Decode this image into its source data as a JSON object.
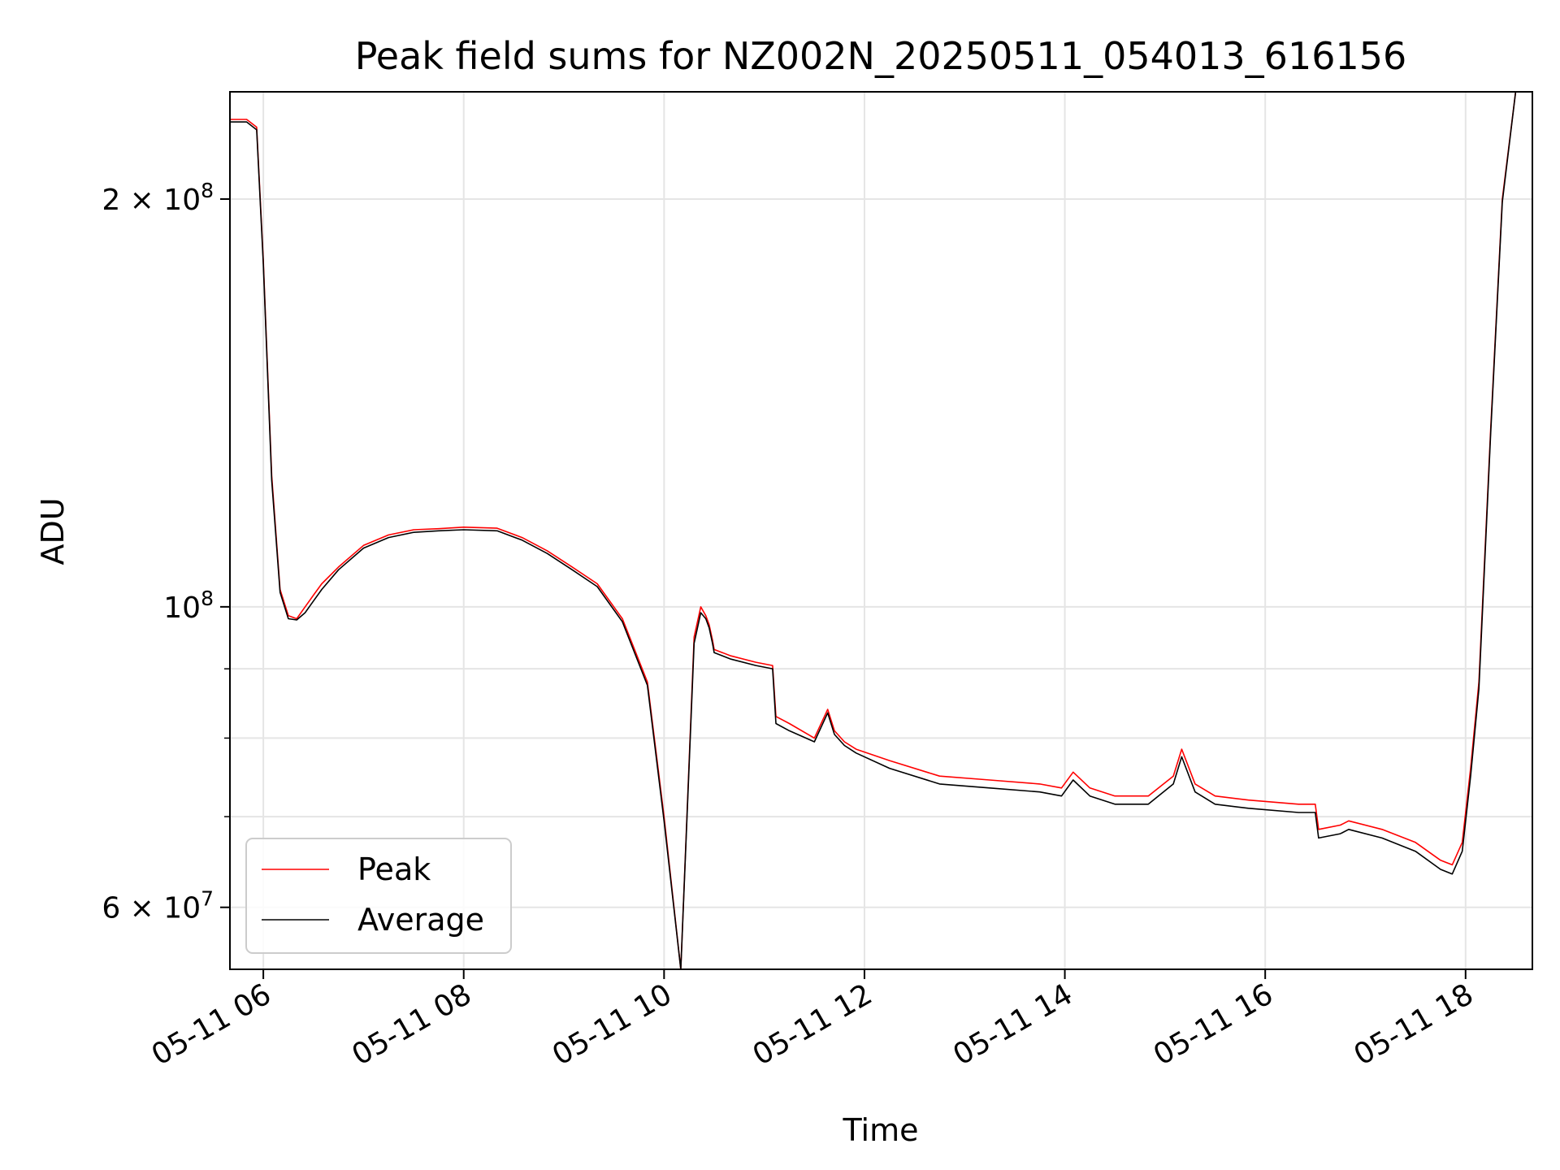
{
  "chart_data": {
    "type": "line",
    "title": "Peak field sums for NZ002N_20250511_054013_616156",
    "xlabel": "Time",
    "ylabel": "ADU",
    "y_scale": "log",
    "ylim": [
      54000000,
      240000000
    ],
    "xlim": [
      "2025-05-11T05:40:00",
      "2025-05-11T18:40:00"
    ],
    "grid": true,
    "legend_position": "lower-left",
    "x_ticks": [
      {
        "t": "2025-05-11T06:00",
        "label": "05-11 06"
      },
      {
        "t": "2025-05-11T08:00",
        "label": "05-11 08"
      },
      {
        "t": "2025-05-11T10:00",
        "label": "05-11 10"
      },
      {
        "t": "2025-05-11T12:00",
        "label": "05-11 12"
      },
      {
        "t": "2025-05-11T14:00",
        "label": "05-11 14"
      },
      {
        "t": "2025-05-11T16:00",
        "label": "05-11 16"
      },
      {
        "t": "2025-05-11T18:00",
        "label": "05-11 18"
      }
    ],
    "y_ticks_major": [
      {
        "value": 60000000,
        "mantissa": "6",
        "exponent": "7"
      },
      {
        "value": 100000000,
        "mantissa": "",
        "exponent": "8"
      },
      {
        "value": 200000000,
        "mantissa": "2",
        "exponent": "8"
      }
    ],
    "y_ticks_minor": [
      70000000,
      80000000,
      90000000
    ],
    "times_symbol": "×",
    "tick_base": "10",
    "series": [
      {
        "name": "Peak",
        "color": "#ff0000",
        "x": [
          "2025-05-11T05:40",
          "2025-05-11T05:50",
          "2025-05-11T05:56",
          "2025-05-11T06:00",
          "2025-05-11T06:05",
          "2025-05-11T06:10",
          "2025-05-11T06:15",
          "2025-05-11T06:20",
          "2025-05-11T06:25",
          "2025-05-11T06:30",
          "2025-05-11T06:35",
          "2025-05-11T06:45",
          "2025-05-11T07:00",
          "2025-05-11T07:15",
          "2025-05-11T07:30",
          "2025-05-11T07:45",
          "2025-05-11T08:00",
          "2025-05-11T08:20",
          "2025-05-11T08:35",
          "2025-05-11T08:50",
          "2025-05-11T09:05",
          "2025-05-11T09:20",
          "2025-05-11T09:35",
          "2025-05-11T09:50",
          "2025-05-11T10:00",
          "2025-05-11T10:10",
          "2025-05-11T10:18",
          "2025-05-11T10:22",
          "2025-05-11T10:25",
          "2025-05-11T10:27",
          "2025-05-11T10:29",
          "2025-05-11T10:30",
          "2025-05-11T10:40",
          "2025-05-11T10:55",
          "2025-05-11T11:05",
          "2025-05-11T11:07",
          "2025-05-11T11:15",
          "2025-05-11T11:30",
          "2025-05-11T11:38",
          "2025-05-11T11:42",
          "2025-05-11T11:48",
          "2025-05-11T11:55",
          "2025-05-11T12:15",
          "2025-05-11T12:45",
          "2025-05-11T13:15",
          "2025-05-11T13:45",
          "2025-05-11T13:58",
          "2025-05-11T14:05",
          "2025-05-11T14:15",
          "2025-05-11T14:30",
          "2025-05-11T14:50",
          "2025-05-11T15:05",
          "2025-05-11T15:10",
          "2025-05-11T15:18",
          "2025-05-11T15:30",
          "2025-05-11T15:50",
          "2025-05-11T16:20",
          "2025-05-11T16:30",
          "2025-05-11T16:32",
          "2025-05-11T16:45",
          "2025-05-11T16:50",
          "2025-05-11T17:10",
          "2025-05-11T17:30",
          "2025-05-11T17:45",
          "2025-05-11T17:52",
          "2025-05-11T17:58",
          "2025-05-11T18:03",
          "2025-05-11T18:08",
          "2025-05-11T18:15",
          "2025-05-11T18:22",
          "2025-05-11T18:30",
          "2025-05-11T18:40"
        ],
        "values": [
          229000000,
          229000000,
          226000000,
          180000000,
          125000000,
          103000000,
          98500000,
          98000000,
          100000000,
          102000000,
          104000000,
          107000000,
          111000000,
          113000000,
          114000000,
          114200000,
          114500000,
          114300000,
          112500000,
          110000000,
          107000000,
          104000000,
          98000000,
          88000000,
          70000000,
          54000000,
          95000000,
          100000000,
          98500000,
          97000000,
          94500000,
          93000000,
          92000000,
          91000000,
          90500000,
          83000000,
          82000000,
          80000000,
          84000000,
          81000000,
          79500000,
          78500000,
          77000000,
          75000000,
          74500000,
          74000000,
          73500000,
          75500000,
          73500000,
          72500000,
          72500000,
          75000000,
          78500000,
          74000000,
          72500000,
          72000000,
          71500000,
          71500000,
          68500000,
          69000000,
          69500000,
          68500000,
          67000000,
          65000000,
          64500000,
          67000000,
          76000000,
          88000000,
          135000000,
          200000000,
          240000000,
          240000000
        ]
      },
      {
        "name": "Average",
        "color": "#000000",
        "x": [
          "2025-05-11T05:40",
          "2025-05-11T05:50",
          "2025-05-11T05:56",
          "2025-05-11T06:00",
          "2025-05-11T06:05",
          "2025-05-11T06:10",
          "2025-05-11T06:15",
          "2025-05-11T06:20",
          "2025-05-11T06:25",
          "2025-05-11T06:30",
          "2025-05-11T06:35",
          "2025-05-11T06:45",
          "2025-05-11T07:00",
          "2025-05-11T07:15",
          "2025-05-11T07:30",
          "2025-05-11T07:45",
          "2025-05-11T08:00",
          "2025-05-11T08:20",
          "2025-05-11T08:35",
          "2025-05-11T08:50",
          "2025-05-11T09:05",
          "2025-05-11T09:20",
          "2025-05-11T09:35",
          "2025-05-11T09:50",
          "2025-05-11T10:00",
          "2025-05-11T10:10",
          "2025-05-11T10:18",
          "2025-05-11T10:22",
          "2025-05-11T10:25",
          "2025-05-11T10:27",
          "2025-05-11T10:29",
          "2025-05-11T10:30",
          "2025-05-11T10:40",
          "2025-05-11T10:55",
          "2025-05-11T11:05",
          "2025-05-11T11:07",
          "2025-05-11T11:15",
          "2025-05-11T11:30",
          "2025-05-11T11:38",
          "2025-05-11T11:42",
          "2025-05-11T11:48",
          "2025-05-11T11:55",
          "2025-05-11T12:15",
          "2025-05-11T12:45",
          "2025-05-11T13:15",
          "2025-05-11T13:45",
          "2025-05-11T13:58",
          "2025-05-11T14:05",
          "2025-05-11T14:15",
          "2025-05-11T14:30",
          "2025-05-11T14:50",
          "2025-05-11T15:05",
          "2025-05-11T15:10",
          "2025-05-11T15:18",
          "2025-05-11T15:30",
          "2025-05-11T15:50",
          "2025-05-11T16:20",
          "2025-05-11T16:30",
          "2025-05-11T16:32",
          "2025-05-11T16:45",
          "2025-05-11T16:50",
          "2025-05-11T17:10",
          "2025-05-11T17:30",
          "2025-05-11T17:45",
          "2025-05-11T17:52",
          "2025-05-11T17:58",
          "2025-05-11T18:03",
          "2025-05-11T18:08",
          "2025-05-11T18:15",
          "2025-05-11T18:22",
          "2025-05-11T18:30",
          "2025-05-11T18:40"
        ],
        "values": [
          228000000,
          228000000,
          225000000,
          179000000,
          124000000,
          102500000,
          98000000,
          97800000,
          99000000,
          101000000,
          103000000,
          106500000,
          110500000,
          112500000,
          113500000,
          113800000,
          114000000,
          113800000,
          112000000,
          109500000,
          106500000,
          103500000,
          97500000,
          87500000,
          69500000,
          53500000,
          94000000,
          99000000,
          98000000,
          96500000,
          94000000,
          92500000,
          91500000,
          90500000,
          90000000,
          82000000,
          81000000,
          79500000,
          83500000,
          80500000,
          79000000,
          78000000,
          76000000,
          74000000,
          73500000,
          73000000,
          72500000,
          74500000,
          72500000,
          71500000,
          71500000,
          74000000,
          77500000,
          73000000,
          71500000,
          71000000,
          70500000,
          70500000,
          67500000,
          68000000,
          68500000,
          67500000,
          66000000,
          64000000,
          63500000,
          66000000,
          75000000,
          87000000,
          134000000,
          199000000,
          240000000,
          240000000
        ]
      }
    ]
  }
}
